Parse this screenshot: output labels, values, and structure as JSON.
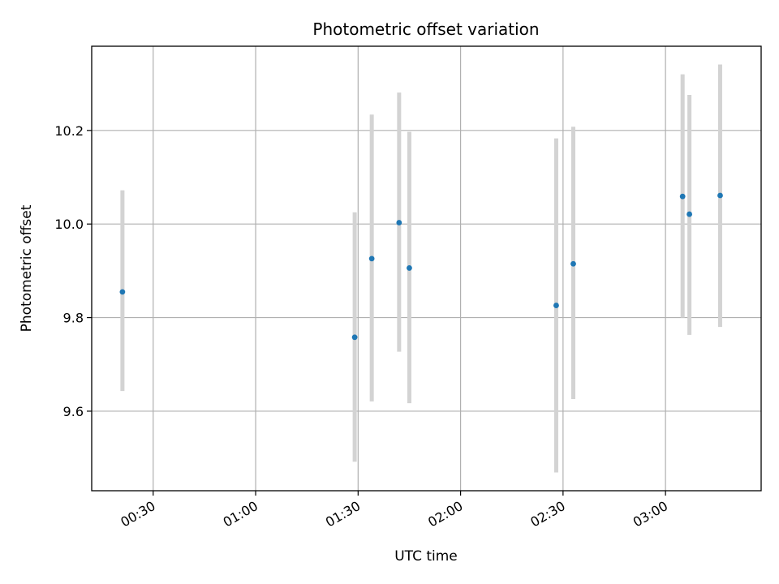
{
  "chart_data": {
    "type": "scatter",
    "title": "Photometric offset variation",
    "xlabel": "UTC time",
    "ylabel": "Photometric offset",
    "x_axis_kind": "time",
    "xlim": [
      "00:12",
      "03:28"
    ],
    "ylim": [
      9.43,
      10.38
    ],
    "x_ticks": [
      "00:30",
      "01:00",
      "01:30",
      "02:00",
      "02:30",
      "03:00"
    ],
    "y_ticks": [
      9.6,
      9.8,
      10.0,
      10.2
    ],
    "grid": true,
    "marker_color": "#1f77b4",
    "errorbar_color": "#d3d3d3",
    "points": [
      {
        "x": "00:21",
        "y": 9.855,
        "yerr_low": 9.643,
        "yerr_high": 10.072
      },
      {
        "x": "01:29",
        "y": 9.758,
        "yerr_low": 9.492,
        "yerr_high": 10.025
      },
      {
        "x": "01:34",
        "y": 9.926,
        "yerr_low": 9.621,
        "yerr_high": 10.234
      },
      {
        "x": "01:42",
        "y": 10.003,
        "yerr_low": 9.727,
        "yerr_high": 10.281
      },
      {
        "x": "01:45",
        "y": 9.906,
        "yerr_low": 9.617,
        "yerr_high": 10.197
      },
      {
        "x": "02:28",
        "y": 9.826,
        "yerr_low": 9.469,
        "yerr_high": 10.183
      },
      {
        "x": "02:33",
        "y": 9.915,
        "yerr_low": 9.626,
        "yerr_high": 10.208
      },
      {
        "x": "03:05",
        "y": 10.059,
        "yerr_low": 9.8,
        "yerr_high": 10.32
      },
      {
        "x": "03:07",
        "y": 10.021,
        "yerr_low": 9.763,
        "yerr_high": 10.276
      },
      {
        "x": "03:16",
        "y": 10.061,
        "yerr_low": 9.78,
        "yerr_high": 10.341
      }
    ]
  }
}
